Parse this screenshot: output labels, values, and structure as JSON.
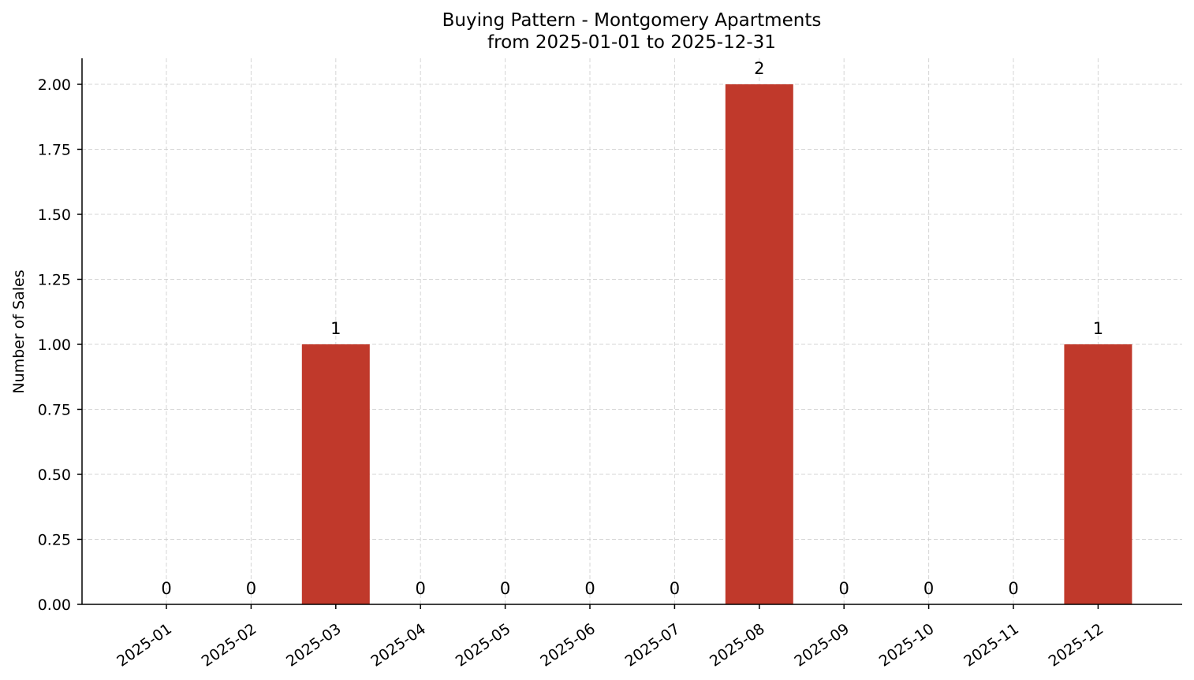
{
  "chart_data": {
    "type": "bar",
    "title": "Buying Pattern - Montgomery Apartments",
    "subtitle": "from 2025-01-01 to 2025-12-31",
    "xlabel": "",
    "ylabel": "Number of Sales",
    "categories": [
      "2025-01",
      "2025-02",
      "2025-03",
      "2025-04",
      "2025-05",
      "2025-06",
      "2025-07",
      "2025-08",
      "2025-09",
      "2025-10",
      "2025-11",
      "2025-12"
    ],
    "values": [
      0,
      0,
      1,
      0,
      0,
      0,
      0,
      2,
      0,
      0,
      0,
      1
    ],
    "data_labels": [
      "0",
      "0",
      "1",
      "0",
      "0",
      "0",
      "0",
      "2",
      "0",
      "0",
      "0",
      "1"
    ],
    "ylim": [
      0,
      2.1
    ],
    "yticks": [
      0,
      0.25,
      0.5,
      0.75,
      1.0,
      1.25,
      1.5,
      1.75,
      2.0
    ],
    "ytick_labels": [
      "0.00",
      "0.25",
      "0.50",
      "0.75",
      "1.00",
      "1.25",
      "1.50",
      "1.75",
      "2.00"
    ],
    "grid": true,
    "bar_color": "#c0392b",
    "legend": false
  }
}
